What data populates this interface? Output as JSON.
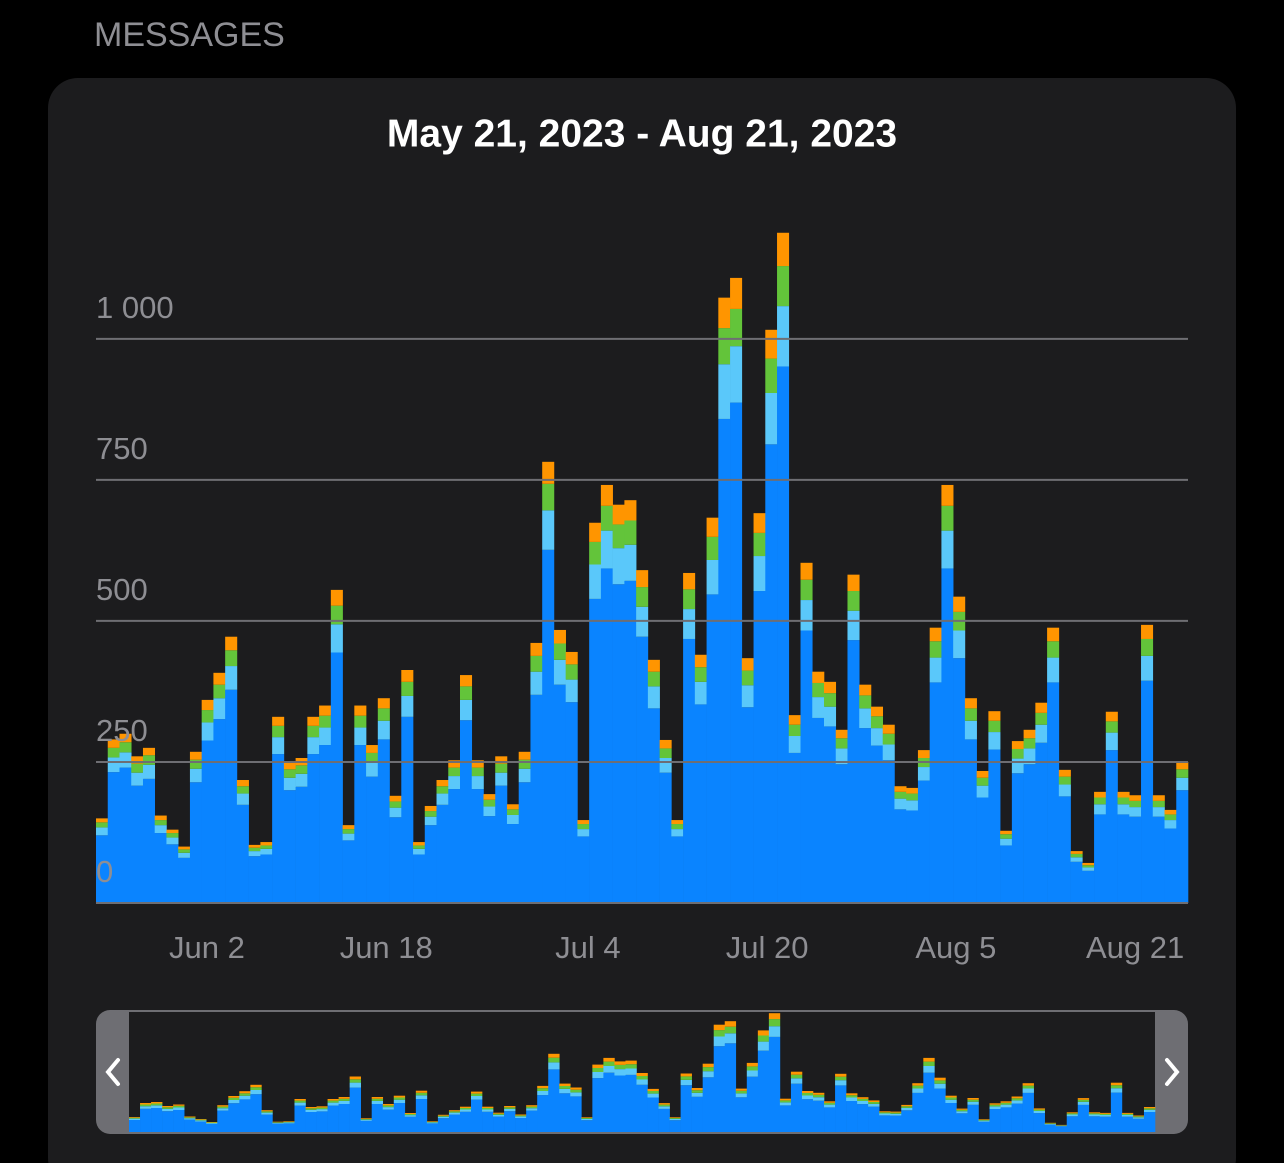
{
  "header": "MESSAGES",
  "chart_data": {
    "type": "stacked-bar",
    "title": "May 21, 2023 - Aug 21, 2023",
    "categories": [
      null,
      null,
      null,
      null,
      null,
      null,
      null,
      null,
      null,
      null,
      null,
      null,
      "Jun 2",
      null,
      null,
      null,
      null,
      null,
      null,
      null,
      null,
      null,
      null,
      null,
      null,
      null,
      null,
      null,
      "Jun 18",
      null,
      null,
      null,
      null,
      null,
      null,
      null,
      null,
      null,
      null,
      null,
      null,
      null,
      null,
      null,
      "Jul 4",
      null,
      null,
      null,
      null,
      null,
      null,
      null,
      null,
      null,
      null,
      null,
      null,
      null,
      null,
      null,
      "Jul 20",
      null,
      null,
      null,
      null,
      null,
      null,
      null,
      null,
      null,
      null,
      null,
      null,
      null,
      null,
      null,
      "Aug 5",
      null,
      null,
      null,
      null,
      null,
      null,
      null,
      null,
      null,
      null,
      null,
      null,
      null,
      null,
      null,
      "Aug 21"
    ],
    "series": [
      {
        "color": "#0a84ff",
        "values": [
          120,
          232,
          240,
          208,
          220,
          124,
          104,
          80,
          214,
          288,
          326,
          378,
          174,
          83,
          86,
          264,
          200,
          206,
          264,
          280,
          444,
          111,
          280,
          224,
          290,
          152,
          330,
          86,
          138,
          174,
          202,
          324,
          202,
          154,
          208,
          140,
          214,
          369,
          626,
          387,
          356,
          118,
          539,
          593,
          565,
          571,
          472,
          345,
          231,
          118,
          468,
          352,
          547,
          858,
          887,
          347,
          553,
          813,
          951,
          266,
          483,
          328,
          313,
          246,
          466,
          310,
          279,
          253,
          166,
          164,
          217,
          391,
          593,
          434,
          290,
          187,
          272,
          102,
          230,
          246,
          284,
          391,
          189,
          73,
          57,
          157,
          271,
          157,
          153,
          394,
          153,
          132,
          200
        ]
      },
      {
        "color": "#5ac8fa",
        "values": [
          14,
          26,
          27,
          23,
          25,
          14,
          12,
          9,
          24,
          32,
          37,
          42,
          20,
          9,
          10,
          30,
          22,
          23,
          30,
          31,
          50,
          12,
          31,
          25,
          33,
          17,
          37,
          10,
          15,
          20,
          23,
          36,
          23,
          17,
          23,
          16,
          24,
          41,
          70,
          44,
          40,
          13,
          61,
          67,
          64,
          64,
          53,
          39,
          26,
          13,
          53,
          40,
          61,
          97,
          100,
          39,
          62,
          91,
          107,
          30,
          54,
          37,
          35,
          28,
          52,
          35,
          31,
          28,
          19,
          18,
          24,
          44,
          67,
          49,
          33,
          21,
          31,
          12,
          26,
          28,
          32,
          44,
          21,
          8,
          6,
          18,
          31,
          18,
          17,
          44,
          17,
          15,
          22
        ]
      },
      {
        "color": "#63c43a",
        "values": [
          9,
          17,
          18,
          16,
          17,
          9,
          8,
          6,
          16,
          22,
          24,
          28,
          13,
          6,
          6,
          20,
          15,
          15,
          20,
          21,
          33,
          8,
          21,
          17,
          22,
          11,
          25,
          6,
          10,
          13,
          15,
          24,
          15,
          12,
          16,
          10,
          16,
          28,
          47,
          29,
          27,
          9,
          40,
          44,
          42,
          43,
          35,
          26,
          17,
          9,
          35,
          26,
          41,
          64,
          66,
          26,
          41,
          61,
          71,
          20,
          36,
          25,
          24,
          18,
          35,
          23,
          21,
          19,
          12,
          12,
          16,
          29,
          44,
          33,
          22,
          14,
          20,
          8,
          17,
          18,
          21,
          29,
          14,
          6,
          4,
          12,
          20,
          12,
          11,
          30,
          11,
          10,
          15
        ]
      },
      {
        "color": "#ff9500",
        "values": [
          7,
          15,
          15,
          13,
          13,
          8,
          6,
          5,
          14,
          18,
          21,
          24,
          11,
          5,
          6,
          16,
          13,
          13,
          16,
          18,
          28,
          7,
          18,
          14,
          18,
          10,
          21,
          6,
          9,
          11,
          13,
          20,
          13,
          10,
          13,
          9,
          14,
          23,
          39,
          24,
          22,
          7,
          34,
          37,
          35,
          36,
          30,
          21,
          15,
          7,
          29,
          22,
          34,
          54,
          55,
          22,
          35,
          51,
          59,
          17,
          30,
          20,
          20,
          15,
          29,
          19,
          17,
          16,
          10,
          10,
          14,
          24,
          37,
          27,
          18,
          12,
          17,
          6,
          14,
          15,
          18,
          24,
          12,
          5,
          4,
          10,
          17,
          10,
          10,
          25,
          10,
          8,
          13
        ]
      }
    ],
    "ylim": [
      0,
      1200
    ],
    "yticks": [
      0,
      250,
      500,
      750,
      {
        "value": 1000,
        "label": "1 000"
      }
    ],
    "grid": true
  }
}
